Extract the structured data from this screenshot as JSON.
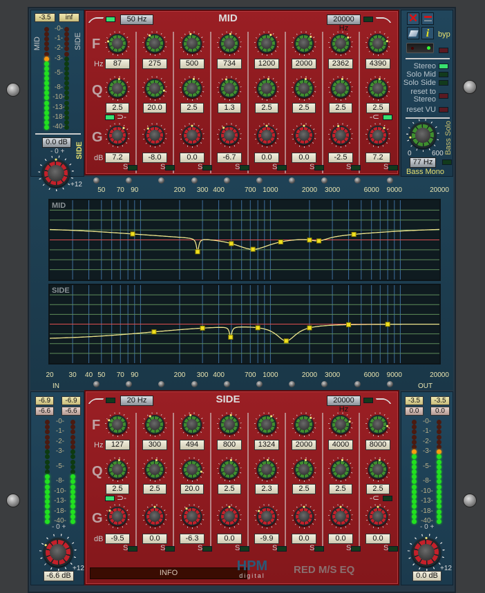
{
  "colors": {
    "mid_ring": "#3f8f2f",
    "gain_ring": "#c4202a",
    "led_green": "#22e020",
    "led_orange": "#ff9a10",
    "panel_red": "#8e1a1e",
    "panel_blue": "#1d3c50",
    "curve": "#f0e68c",
    "zero_line": "#e05050"
  },
  "mid_meter": {
    "mid_value": "-3.5",
    "side_value": "inf",
    "mid_label": "MID",
    "side_label": "SIDE",
    "mid_lit_leds": 15,
    "side_lit_leds": 0,
    "scale": [
      "-0-",
      "-1-",
      "-2-",
      "-3-",
      "-5-",
      "-8-",
      "-10-",
      "-13-",
      "-18-",
      "-40-"
    ],
    "side_gain": "0.0 dB",
    "side_gain_label": "SIDE",
    "knob_range": "- 0 +",
    "knob_max": "+12"
  },
  "mid": {
    "title": "MID",
    "hp_freq": "50 Hz",
    "hp_enabled": true,
    "lp_freq": "20000 Hz",
    "lp_enabled": false,
    "row_labels": {
      "f": "F",
      "hz": "Hz",
      "q": "Q",
      "g": "G",
      "db": "dB"
    },
    "solo_label": "S",
    "bands": [
      {
        "f": "87",
        "q": "2.5",
        "g": "7.2"
      },
      {
        "f": "275",
        "q": "20.0",
        "g": "-8.0"
      },
      {
        "f": "500",
        "q": "2.5",
        "g": "0.0"
      },
      {
        "f": "734",
        "q": "1.3",
        "g": "-6.7"
      },
      {
        "f": "1200",
        "q": "2.5",
        "g": "0.0"
      },
      {
        "f": "2000",
        "q": "2.5",
        "g": "0.0"
      },
      {
        "f": "2362",
        "q": "2.5",
        "g": "-2.5"
      },
      {
        "f": "4390",
        "q": "2.5",
        "g": "7.2"
      }
    ],
    "low_shelf_enabled": true,
    "high_shelf_enabled": true
  },
  "side": {
    "title": "SIDE",
    "hp_freq": "20 Hz",
    "hp_enabled": false,
    "lp_freq": "20000 Hz",
    "lp_enabled": false,
    "row_labels": {
      "f": "F",
      "hz": "Hz",
      "q": "Q",
      "g": "G",
      "db": "dB"
    },
    "solo_label": "S",
    "bands": [
      {
        "f": "127",
        "q": "2.5",
        "g": "-9.5"
      },
      {
        "f": "300",
        "q": "2.5",
        "g": "0.0"
      },
      {
        "f": "494",
        "q": "20.0",
        "g": "-6.3"
      },
      {
        "f": "800",
        "q": "2.5",
        "g": "0.0"
      },
      {
        "f": "1324",
        "q": "2.3",
        "g": "-9.9"
      },
      {
        "f": "2000",
        "q": "2.5",
        "g": "0.0"
      },
      {
        "f": "4000",
        "q": "2.5",
        "g": "0.0"
      },
      {
        "f": "8000",
        "q": "2.5",
        "g": "0.0"
      }
    ],
    "low_shelf_enabled": true,
    "high_shelf_enabled": false
  },
  "controls": {
    "bypass_label": "byp",
    "power_on": true,
    "modes": [
      {
        "label": "Stereo",
        "on": true
      },
      {
        "label": "Solo Mid",
        "on": false
      },
      {
        "label": "Solo Side",
        "on": false
      }
    ],
    "reset_stereo_line1": "reset to",
    "reset_stereo_line2": "Stereo",
    "reset_vu": "reset VU",
    "bass_min": "0",
    "bass_max": "600",
    "bass_freq": "77 Hz",
    "bass_solo": "Bass Solo",
    "bass_mono": "Bass Mono"
  },
  "graph": {
    "mid_label": "MID",
    "side_label": "SIDE",
    "in_label": "IN",
    "out_label": "OUT",
    "db_range": [
      -24,
      24
    ],
    "freq_range": [
      20,
      20000
    ],
    "top_ticks": [
      "50",
      "70",
      "90",
      "200",
      "300",
      "400",
      "700",
      "1000",
      "2000",
      "3000",
      "6000",
      "9000",
      "20000"
    ],
    "bottom_ticks": [
      "20",
      "30",
      "40",
      "50",
      "70",
      "90",
      "200",
      "300",
      "400",
      "700",
      "1000",
      "2000",
      "3000",
      "6000",
      "9000",
      "20000"
    ]
  },
  "in_meter": {
    "peak_l": "-6.9",
    "peak_r": "-6.9",
    "rms_l": "-6.6",
    "rms_r": "-6.6",
    "lit_leds_l": 10,
    "lit_leds_r": 10,
    "scale": [
      "-0-",
      "-1-",
      "-2-",
      "-3-",
      "-5-",
      "-8-",
      "-10-",
      "-13-",
      "-18-",
      "-40-"
    ],
    "gain": "-6.6 dB",
    "knob_range": "- 0 +",
    "knob_max": "+12"
  },
  "out_meter": {
    "peak_l": "-3.5",
    "peak_r": "-3.5",
    "rms_l": "0.0",
    "rms_r": "0.0",
    "lit_leds_l": 15,
    "lit_leds_r": 15,
    "scale": [
      "-0-",
      "-1-",
      "-2-",
      "-3-",
      "-5-",
      "-8-",
      "-10-",
      "-13-",
      "-18-",
      "-40-"
    ],
    "gain": "0.0 dB",
    "knob_range": "- 0 +",
    "knob_max": "+12"
  },
  "footer": {
    "info": "INFO",
    "logo_top": "HPM",
    "logo_bottom": "digital",
    "product": "RED M/S EQ"
  }
}
